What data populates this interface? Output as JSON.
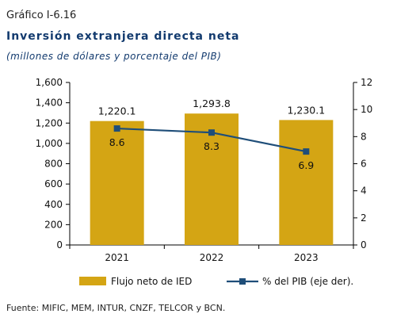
{
  "header": {
    "label": "Gráfico I-6.16",
    "title": "Inversión extranjera directa neta",
    "subtitle": "(millones de dólares y porcentaje del PIB)"
  },
  "source": "Fuente: MIFIC, MEM, INTUR, CNZF, TELCOR y BCN.",
  "colors": {
    "bar": "#d4a514",
    "line": "#1f4e79",
    "axis": "#000000"
  },
  "chart_data": {
    "type": "bar",
    "categories": [
      "2021",
      "2022",
      "2023"
    ],
    "series": [
      {
        "name": "Flujo neto de IED",
        "type": "bar",
        "axis": "left",
        "values": [
          1220.1,
          1293.8,
          1230.1
        ],
        "labels": [
          "1,220.1",
          "1,293.8",
          "1,230.1"
        ]
      },
      {
        "name": "% del PIB (eje der).",
        "type": "line",
        "axis": "right",
        "values": [
          8.6,
          8.3,
          6.9
        ],
        "labels": [
          "8.6",
          "8.3",
          "6.9"
        ]
      }
    ],
    "y_left": {
      "min": 0,
      "max": 1600,
      "ticks": [
        0,
        200,
        400,
        600,
        800,
        1000,
        1200,
        1400,
        1600
      ],
      "tick_labels": [
        "0",
        "200",
        "400",
        "600",
        "800",
        "1,000",
        "1,200",
        "1,400",
        "1,600"
      ]
    },
    "y_right": {
      "min": 0,
      "max": 12,
      "ticks": [
        0,
        2,
        4,
        6,
        8,
        10,
        12
      ],
      "tick_labels": [
        "0",
        "2",
        "4",
        "6",
        "8",
        "10",
        "12"
      ]
    },
    "grid": false,
    "legend_position": "bottom"
  }
}
